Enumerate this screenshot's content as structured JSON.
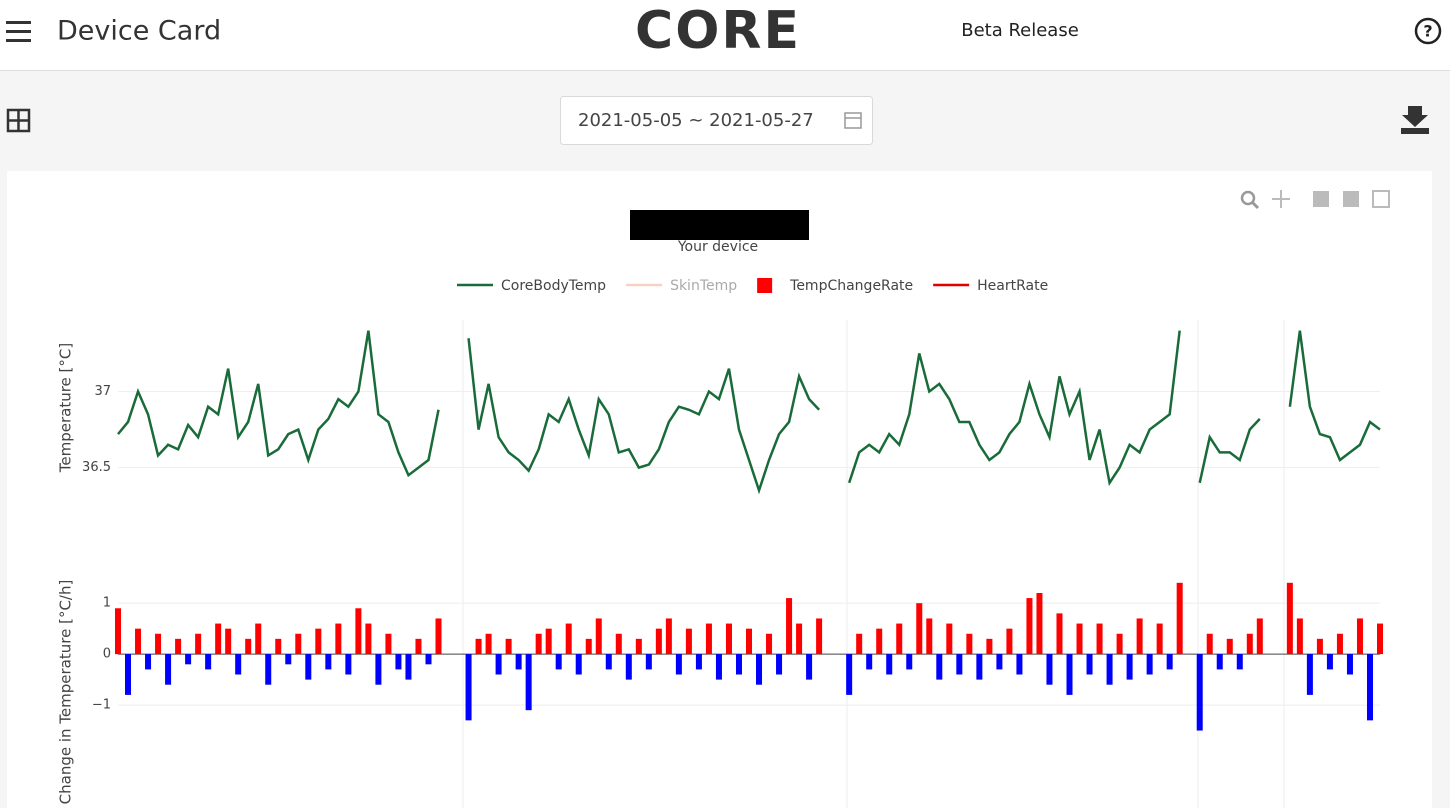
{
  "header": {
    "title": "Device Card",
    "logo": "CORE",
    "release": "Beta Release"
  },
  "date_range": "2021-05-05 ~ 2021-05-27",
  "subtitle": "Your device",
  "legend": [
    {
      "name": "CoreBodyTemp",
      "color": "#1a6b3a",
      "shape": "line",
      "hidden": false
    },
    {
      "name": "SkinTemp",
      "color": "#f4a582",
      "shape": "line",
      "hidden": true
    },
    {
      "name": "TempChangeRate",
      "color": "#ff0000",
      "shape": "square",
      "hidden": false
    },
    {
      "name": "HeartRate",
      "color": "#e00000",
      "shape": "line",
      "hidden": false
    }
  ],
  "chart_data": [
    {
      "type": "line",
      "ylabel": "Temperature [°C]",
      "ylim": [
        36.32,
        37.47
      ],
      "yticks": [
        36.5,
        37
      ],
      "grid": true,
      "series": [
        {
          "color": "#1a6b3a",
          "values": [
            36.72,
            36.8,
            37.0,
            36.85,
            36.58,
            36.65,
            36.62,
            36.78,
            36.7,
            36.9,
            36.85,
            37.15,
            36.7,
            36.8,
            37.05,
            36.58,
            36.62,
            36.72,
            36.75,
            36.55,
            36.75,
            36.82,
            36.95,
            36.9,
            37.0,
            37.4,
            36.85,
            36.8,
            36.6,
            36.45,
            36.5,
            36.55,
            36.88,
            null,
            null,
            37.35,
            36.75,
            37.05,
            36.7,
            36.6,
            36.55,
            36.48,
            36.62,
            36.85,
            36.8,
            36.95,
            36.75,
            36.58,
            36.95,
            36.85,
            36.6,
            36.62,
            36.5,
            36.52,
            36.62,
            36.8,
            36.9,
            36.88,
            36.85,
            37.0,
            36.95,
            37.15,
            36.75,
            36.55,
            36.35,
            36.55,
            36.72,
            36.8,
            37.1,
            36.95,
            36.88,
            null,
            null,
            36.4,
            36.6,
            36.65,
            36.6,
            36.72,
            36.65,
            36.85,
            37.25,
            37.0,
            37.05,
            36.95,
            36.8,
            36.8,
            36.65,
            36.55,
            36.6,
            36.72,
            36.8,
            37.05,
            36.85,
            36.7,
            37.1,
            36.85,
            37.0,
            36.55,
            36.75,
            36.4,
            36.5,
            36.65,
            36.6,
            36.75,
            36.8,
            36.85,
            37.4,
            null,
            36.4,
            36.7,
            36.6,
            36.6,
            36.55,
            36.75,
            36.82,
            null,
            null,
            36.9,
            37.4,
            36.9,
            36.72,
            36.7,
            36.55,
            36.6,
            36.65,
            36.8,
            36.75
          ]
        }
      ]
    },
    {
      "type": "bar",
      "ylabel": "Change in Temperature [°C/h]",
      "ylim": [
        -3.02,
        2.24
      ],
      "yticks": [
        {
          "value": -1,
          "label": "−1"
        },
        0,
        1
      ],
      "grid": true,
      "series": [
        {
          "color": "#ff0000",
          "negative_color": "#0000ff",
          "values": [
            0.9,
            -0.8,
            0.5,
            -0.3,
            0.4,
            -0.6,
            0.3,
            -0.2,
            0.4,
            -0.3,
            0.6,
            0.5,
            -0.4,
            0.3,
            0.6,
            -0.6,
            0.3,
            -0.2,
            0.4,
            -0.5,
            0.5,
            -0.3,
            0.6,
            -0.4,
            0.9,
            0.6,
            -0.6,
            0.4,
            -0.3,
            -0.5,
            0.3,
            -0.2,
            0.7,
            null,
            null,
            -1.3,
            0.3,
            0.4,
            -0.4,
            0.3,
            -0.3,
            -1.1,
            0.4,
            0.5,
            -0.3,
            0.6,
            -0.4,
            0.3,
            0.7,
            -0.3,
            0.4,
            -0.5,
            0.3,
            -0.3,
            0.5,
            0.7,
            -0.4,
            0.5,
            -0.3,
            0.6,
            -0.5,
            0.6,
            -0.4,
            0.5,
            -0.6,
            0.4,
            -0.4,
            1.1,
            0.6,
            -0.5,
            0.7,
            null,
            null,
            -0.8,
            0.4,
            -0.3,
            0.5,
            -0.4,
            0.6,
            -0.3,
            1.0,
            0.7,
            -0.5,
            0.6,
            -0.4,
            0.4,
            -0.5,
            0.3,
            -0.3,
            0.5,
            -0.4,
            1.1,
            1.2,
            -0.6,
            0.8,
            -0.8,
            0.6,
            -0.4,
            0.6,
            -0.6,
            0.4,
            -0.5,
            0.7,
            -0.4,
            0.6,
            -0.3,
            1.4,
            null,
            -1.5,
            0.4,
            -0.3,
            0.3,
            -0.3,
            0.4,
            0.7,
            null,
            null,
            1.4,
            0.7,
            -0.8,
            0.3,
            -0.3,
            0.4,
            -0.4,
            0.7,
            -1.3,
            0.6
          ]
        }
      ]
    }
  ]
}
